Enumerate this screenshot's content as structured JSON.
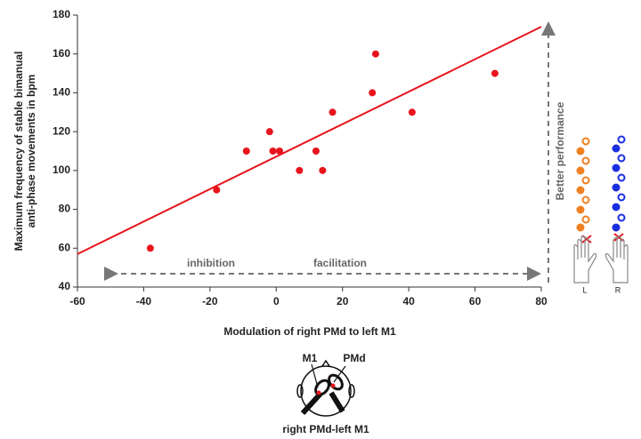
{
  "chart_data": {
    "type": "scatter",
    "x_label": "Modulation of right PMd to left M1",
    "y_label": [
      "Maximum frequency of stable bimanual",
      "anti-phase movements in bpm"
    ],
    "xlim": [
      -60,
      80
    ],
    "xticks": [
      -60,
      -40,
      -20,
      0,
      20,
      40,
      60,
      80
    ],
    "ylim": [
      40,
      180
    ],
    "yticks": [
      40,
      60,
      80,
      100,
      120,
      140,
      160,
      180
    ],
    "points": {
      "color": "#e8141c",
      "x": [
        -38,
        -18,
        -9,
        -2,
        -1,
        1,
        7,
        12,
        14,
        17,
        29,
        30,
        41,
        66
      ],
      "y": [
        60,
        90,
        110,
        120,
        110,
        110,
        100,
        110,
        100,
        130,
        140,
        160,
        130,
        150
      ]
    },
    "fit": {
      "color": "#e8141c",
      "x": [
        -60,
        80
      ],
      "y": [
        57,
        174
      ]
    },
    "annotations": {
      "inhibition": "inhibition",
      "facilitation": "facilitation",
      "better": "Better performance",
      "left_hand": "L",
      "right_hand": "R"
    },
    "diagram": {
      "m1": "M1",
      "pmd": "PMd",
      "caption": "right PMd-left M1"
    }
  }
}
